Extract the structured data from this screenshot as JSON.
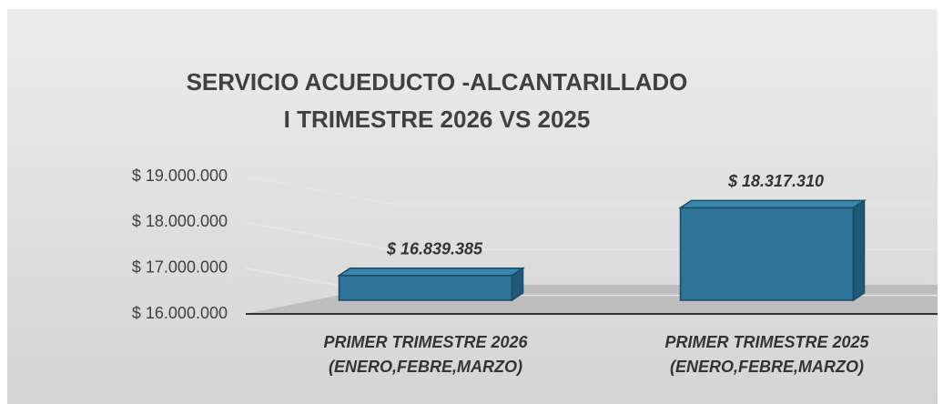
{
  "chart_data": {
    "type": "bar3d",
    "title": [
      "SERVICIO ACUEDUCTO -ALCANTARILLADO",
      "I TRIMESTRE 2026 VS 2025"
    ],
    "categories": [
      [
        "PRIMER TRIMESTRE  2026",
        "(ENERO,FEBRE,MARZO)"
      ],
      [
        "PRIMER TRIMESTRE  2025",
        "(ENERO,FEBRE,MARZO)"
      ]
    ],
    "values": [
      16839385,
      18317310
    ],
    "value_labels": [
      "$ 16.839.385",
      "$ 18.317.310"
    ],
    "color": "#2e7398",
    "ylim": [
      16000000,
      19000000
    ],
    "yticks": [
      {
        "value": 16000000,
        "label": "$ 16.000.000"
      },
      {
        "value": 17000000,
        "label": "$ 17.000.000"
      },
      {
        "value": 18000000,
        "label": "$ 18.000.000"
      },
      {
        "value": 19000000,
        "label": "$ 19.000.000"
      }
    ],
    "grid": true
  }
}
